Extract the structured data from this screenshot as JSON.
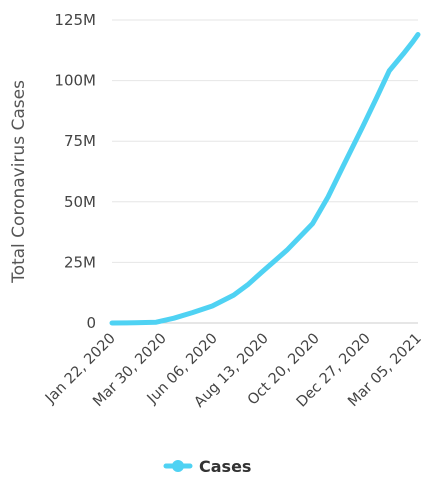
{
  "chart_data": {
    "type": "line",
    "title": "",
    "xlabel": "",
    "ylabel": "Total Coronavirus Cases",
    "x_tick_labels": [
      "Jan 22, 2020",
      "Mar 30, 2020",
      "Jun 06, 2020",
      "Aug 13, 2020",
      "Oct 20, 2020",
      "Dec 27, 2020",
      "Mar 05, 2021"
    ],
    "y_tick_labels": [
      "0",
      "25M",
      "50M",
      "75M",
      "100M",
      "125M"
    ],
    "ylim": [
      0,
      125000000
    ],
    "xlim": [
      "2020-01-22",
      "2021-03-12"
    ],
    "grid": true,
    "legend_position": "bottom",
    "series": [
      {
        "name": "Cases",
        "color": "#4fd2f3",
        "x": [
          "2020-01-22",
          "2020-02-22",
          "2020-03-22",
          "2020-04-15",
          "2020-05-10",
          "2020-06-06",
          "2020-07-05",
          "2020-07-25",
          "2020-08-13",
          "2020-09-15",
          "2020-10-20",
          "2020-11-10",
          "2020-12-01",
          "2020-12-27",
          "2021-01-15",
          "2021-02-01",
          "2021-02-20",
          "2021-03-05",
          "2021-03-12"
        ],
        "values": [
          0,
          80000,
          350000,
          2000000,
          4300000,
          7000000,
          11500000,
          16000000,
          21200000,
          30000000,
          41000000,
          52000000,
          65000000,
          81000000,
          93000000,
          104000000,
          111000000,
          116000000,
          119000000
        ]
      }
    ]
  }
}
